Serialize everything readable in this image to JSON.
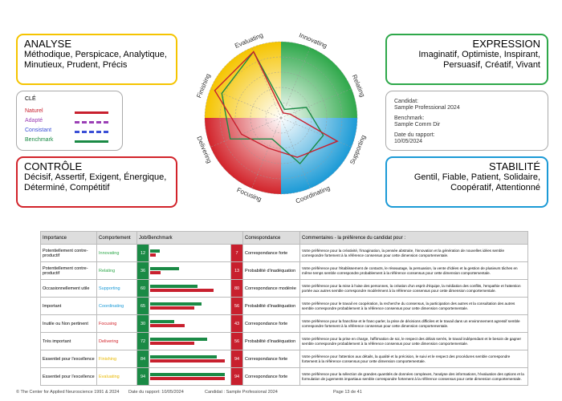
{
  "boxes": {
    "analyse": {
      "title": "ANALYSE",
      "text": "Méthodique, Perspicace, Analytique, Minutieux, Prudent, Précis"
    },
    "expression": {
      "title": "EXPRESSION",
      "text": "Imaginatif, Optimiste, Inspirant, Persuasif, Créatif, Vivant"
    },
    "controle": {
      "title": "CONTRÔLE",
      "text": "Décisif, Assertif, Exigent, Énergique, Déterminé, Compétitif"
    },
    "stabilite": {
      "title": "STABILITÉ",
      "text": "Gentil, Fiable, Patient, Solidaire, Coopératif, Attentionné"
    }
  },
  "legend": {
    "title": "CLÉ",
    "items": [
      {
        "name": "Naturel",
        "color": "#c8202e",
        "dashed": false
      },
      {
        "name": "Adapté",
        "color": "#9b3fb5",
        "dashed": true
      },
      {
        "name": "Consistant",
        "color": "#3a4fd6",
        "dashed": true
      },
      {
        "name": "Benchmark",
        "color": "#1a8a45",
        "dashed": false
      }
    ]
  },
  "candidate": [
    {
      "label": "Candidat:",
      "value": "Sample Professional 2024"
    },
    {
      "label": "Benchmark:",
      "value": "Sample Comm Dir"
    },
    {
      "label": "Date du rapport:",
      "value": "10/05/2024"
    }
  ],
  "table": {
    "header": [
      "Importance",
      "Comportement",
      "Job/Benchmark",
      "Correspondance",
      "Commentaires - la préférence du candidat pour :"
    ],
    "rows": [
      {
        "importance": "Potentiellement contre-productif",
        "behavior": "Innovating",
        "color": "#2ea84a",
        "benchmark": 12,
        "naturel": 7,
        "match": "Correspondance forte",
        "comment": "Votre préférence pour la créativité, l'imagination, la pensée abstraite, l'innovation et la génération de nouvelles idées semble correspondre fortement à la référence consensus pour cette dimension comportementale."
      },
      {
        "importance": "Potentiellement contre-productif",
        "behavior": "Relating",
        "color": "#2ea84a",
        "benchmark": 36,
        "naturel": 13,
        "match": "Probabilité d'inadéquation",
        "comment": "Votre préférence pour l'établissement de contacts, le réseautage, la persuasion, la vente d'idées et la gestion de plusieurs tâches en même temps semble correspondre probablement à la référence consensus pour cette dimension comportementale."
      },
      {
        "importance": "Occasionnellement utile",
        "behavior": "Supporting",
        "color": "#1b9ad6",
        "benchmark": 60,
        "naturel": 80,
        "match": "Correspondance modérée",
        "comment": "Votre préférence pour la mise à l'aise des personnes, la création d'un esprit d'équipe, la médiation des conflits, l'empathie et l'attention portée aux autres semble correspondre modérément à la référence consensus pour cette dimension comportementale."
      },
      {
        "importance": "Important",
        "behavior": "Coordinating",
        "color": "#1b9ad6",
        "benchmark": 65,
        "naturel": 56,
        "match": "Probabilité d'inadéquation",
        "comment": "Votre préférence pour le travail en coopération, la recherche du consensus, la participation des autres et la consultation des autres semble correspondre probablement à la référence consensus pour cette dimension comportementale."
      },
      {
        "importance": "Inutile ou Non pertinent",
        "behavior": "Focusing",
        "color": "#d2232a",
        "benchmark": 30,
        "naturel": 43,
        "match": "Correspondance forte",
        "comment": "Votre préférence pour la franchise et le franc-parler, la prise de décisions difficiles et le travail dans un environnement agressif semble correspondre fortement à la référence consensus pour cette dimension comportementale."
      },
      {
        "importance": "Très important",
        "behavior": "Delivering",
        "color": "#d2232a",
        "benchmark": 72,
        "naturel": 56,
        "match": "Probabilité d'inadéquation",
        "comment": "Votre préférence pour la prise en charge, l'affirmation de soi, le respect des délais serrés, le travail indépendant et le besoin de gagner semble correspondre probablement à la référence consensus pour cette dimension comportementale."
      },
      {
        "importance": "Essentiel pour l'excellence",
        "behavior": "Finishing",
        "color": "#e8b800",
        "benchmark": 84,
        "naturel": 94,
        "match": "Correspondance forte",
        "comment": "Votre préférence pour l'attention aux détails, la qualité et la précision, le suivi et le respect des procédures semble correspondre fortement à la référence consensus pour cette dimension comportementale."
      },
      {
        "importance": "Essentiel pour l'excellence",
        "behavior": "Evaluating",
        "color": "#e8b800",
        "benchmark": 94,
        "naturel": 94,
        "match": "Correspondance forte",
        "comment": "Votre préférence pour la sélection de grandes quantités de données complexes, l'analyse des informations, l'évaluation des options et la formulation de jugements impartiaux semble correspondre fortement à la référence consensus pour cette dimension comportementale."
      }
    ]
  },
  "scale_max": 100,
  "footer": [
    "© The Center for Applied Neuroscience 1991 & 2024",
    "Date du rapport: 10/05/2024",
    "Candidat : Sample Professional 2024",
    "Page 13 de 41"
  ]
}
